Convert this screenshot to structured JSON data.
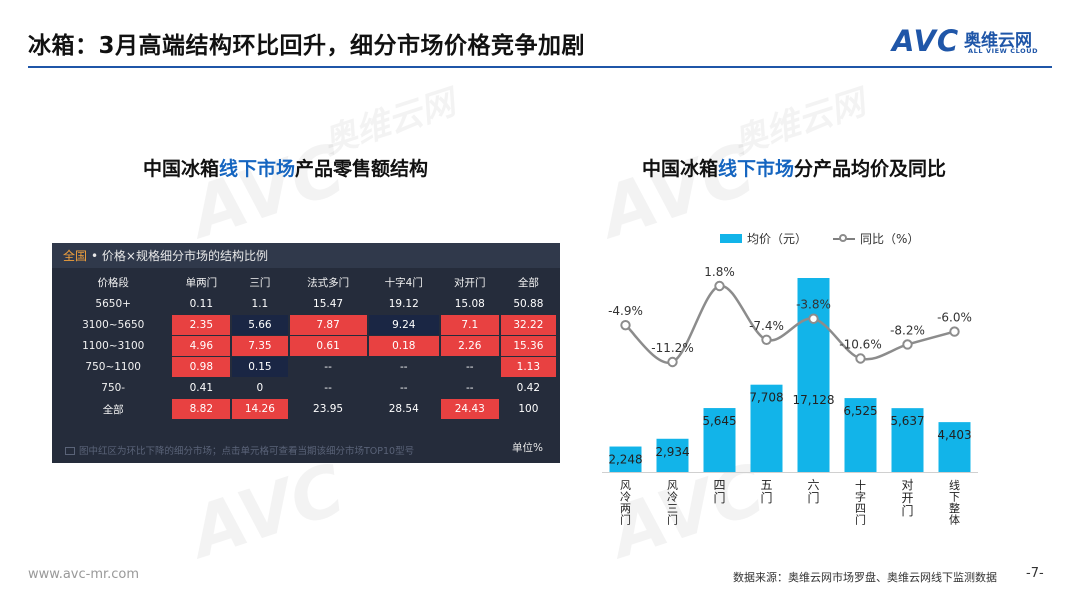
{
  "page_title": "冰箱：3月高端结构环比回升，细分市场价格竞争加剧",
  "logo": {
    "mark": "AVC",
    "cn": "奥维云网",
    "en": "ALL VIEW CLOUD"
  },
  "watermark": {
    "mark": "AVC",
    "cn": "奥维云网",
    "en": "ALL VIEW CLOUD"
  },
  "left": {
    "title_pre": "中国冰箱",
    "title_hl": "线下市场",
    "title_post": "产品零售额结构",
    "table": {
      "heading_region": "全国",
      "heading_text": "• 价格×规格细分市场的结构比例",
      "columns": [
        "价格段",
        "单两门",
        "三门",
        "法式多门",
        "十字4门",
        "对开门",
        "全部"
      ],
      "rows": [
        {
          "label": "5650+",
          "cells": [
            "0.11",
            "1.1",
            "15.47",
            "19.12",
            "15.08",
            "50.88"
          ],
          "marks": [
            "",
            "",
            "",
            "",
            "",
            ""
          ]
        },
        {
          "label": "3100~5650",
          "cells": [
            "2.35",
            "5.66",
            "7.87",
            "9.24",
            "7.1",
            "32.22"
          ],
          "marks": [
            "red",
            "blue",
            "red",
            "blue",
            "red",
            "red"
          ]
        },
        {
          "label": "1100~3100",
          "cells": [
            "4.96",
            "7.35",
            "0.61",
            "0.18",
            "2.26",
            "15.36"
          ],
          "marks": [
            "red",
            "red",
            "red",
            "red",
            "red",
            "red"
          ]
        },
        {
          "label": "750~1100",
          "cells": [
            "0.98",
            "0.15",
            "--",
            "--",
            "--",
            "1.13"
          ],
          "marks": [
            "red",
            "blue",
            "",
            "",
            "",
            "red"
          ]
        },
        {
          "label": "750-",
          "cells": [
            "0.41",
            "0",
            "--",
            "--",
            "--",
            "0.42"
          ],
          "marks": [
            "",
            "",
            "",
            "",
            "",
            ""
          ]
        },
        {
          "label": "全部",
          "cells": [
            "8.82",
            "14.26",
            "23.95",
            "28.54",
            "24.43",
            "100"
          ],
          "marks": [
            "red",
            "red",
            "",
            "",
            "red",
            ""
          ]
        }
      ],
      "note": "图中红区为环比下降的细分市场；点击单元格可查看当期该细分市场TOP10型号",
      "unit": "单位%"
    }
  },
  "right": {
    "title_pre": "中国冰箱",
    "title_hl": "线下市场",
    "title_post": "分产品均价及同比",
    "legend": {
      "bar": "均价（元）",
      "line": "同比（%）"
    }
  },
  "chart_data": {
    "type": "bar",
    "categories": [
      "风冷两门",
      "风冷三门",
      "四门",
      "五门",
      "六门",
      "十字四门",
      "对开门",
      "线下整体"
    ],
    "series": [
      {
        "name": "均价（元）",
        "type": "bar",
        "values": [
          2248,
          2934,
          5645,
          7708,
          17128,
          6525,
          5637,
          4403
        ],
        "labels": [
          "2,248",
          "2,934",
          "5,645",
          "7,708",
          "17,128",
          "6,525",
          "5,637",
          "4,403"
        ],
        "color": "#12b4e9"
      },
      {
        "name": "同比（%）",
        "type": "line",
        "values": [
          -4.9,
          -11.2,
          1.8,
          -7.4,
          -3.8,
          -10.6,
          -8.2,
          -6.0
        ],
        "labels": [
          "-4.9%",
          "-11.2%",
          "1.8%",
          "-7.4%",
          "-3.8%",
          "-10.6%",
          "-8.2%",
          "-6.0%"
        ],
        "color": "#8c8c8c"
      }
    ],
    "bar_range": [
      0,
      17128
    ],
    "line_range": [
      -11.2,
      1.8
    ],
    "grid": false,
    "legend_position": "top"
  },
  "footer": {
    "url": "www.avc-mr.com",
    "source": "数据来源：奥维云网市场罗盘、奥维云网线下监测数据",
    "page": "-7-"
  }
}
